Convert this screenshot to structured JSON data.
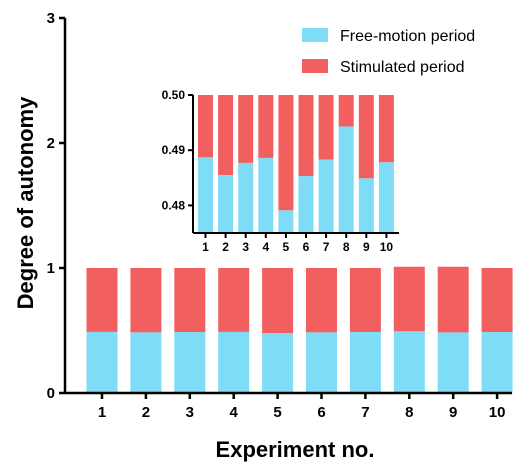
{
  "chart_data": {
    "type": "bar",
    "stacked": true,
    "categories": [
      "1",
      "2",
      "3",
      "4",
      "5",
      "6",
      "7",
      "8",
      "9",
      "10"
    ],
    "series": [
      {
        "name": "Free-motion period",
        "color": "#7fdcf7",
        "values": [
          0.4887,
          0.4855,
          0.4877,
          0.4886,
          0.4791,
          0.4853,
          0.4883,
          0.4943,
          0.4849,
          0.4878
        ]
      },
      {
        "name": "Stimulated period",
        "color": "#f25f5f",
        "values": [
          0.5113,
          0.5145,
          0.5123,
          0.5114,
          0.5209,
          0.5147,
          0.5117,
          0.5157,
          0.5251,
          0.5122
        ]
      }
    ],
    "xlabel": "Experiment no.",
    "ylabel": "Degree of autonomy",
    "ylim": [
      0,
      3
    ],
    "yticks": [
      "0",
      "1",
      "2",
      "3"
    ],
    "legend": "top-right",
    "inset": {
      "ylim": [
        0.475,
        0.5
      ],
      "yticks": [
        "0.48",
        "0.49",
        "0.50"
      ],
      "categories": [
        "1",
        "2",
        "3",
        "4",
        "5",
        "6",
        "7",
        "8",
        "9",
        "10"
      ]
    }
  }
}
